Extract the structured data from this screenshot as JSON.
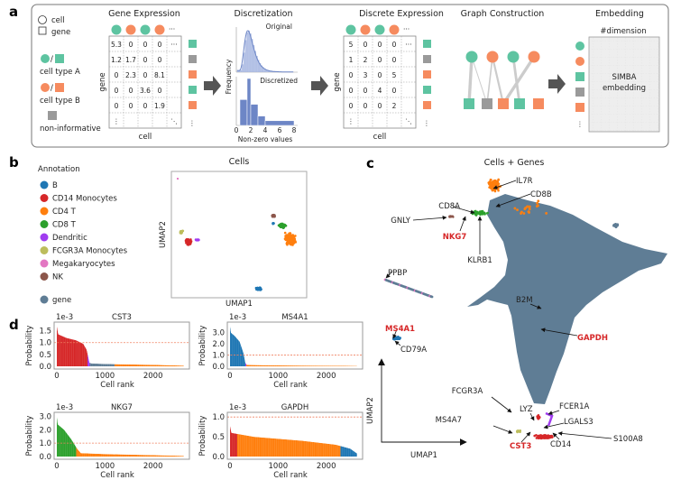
{
  "panel_labels": {
    "a": "a",
    "b": "b",
    "c": "c",
    "d": "d"
  },
  "colors": {
    "type_a": "#5ec4a1",
    "type_b": "#f68b5f",
    "non_informative": "#9a9a9a",
    "B": "#1f77b4",
    "CD14 Monocytes": "#d62728",
    "CD4 T": "#ff7f0e",
    "CD8 T": "#2ca02c",
    "Dendritic": "#a03cf0",
    "FCGR3A Monocytes": "#bcbd5c",
    "Megakaryocytes": "#e377c2",
    "NK": "#8c564b",
    "gene": "#5f7d95",
    "threshold": "#f08060",
    "hist": "#6d86c6"
  },
  "overview": {
    "legend": {
      "cell": "cell",
      "gene": "gene",
      "slash": "/",
      "type_a": "cell type A",
      "type_b": "cell type B",
      "non_informative": "non-informative"
    },
    "gene_expression": {
      "title": "Gene Expression",
      "row_label": "gene",
      "col_label": "cell",
      "cell_types": [
        "A",
        "B",
        "A",
        "B"
      ],
      "more_cells": "···",
      "gene_types": [
        "A",
        "N",
        "B",
        "A",
        "B"
      ],
      "more_genes": "⋮",
      "matrix": [
        [
          "5.3",
          "0",
          "0",
          "0",
          "···"
        ],
        [
          "1.2",
          "1.7",
          "0",
          "0",
          ""
        ],
        [
          "0",
          "2.3",
          "0",
          "8.1",
          ""
        ],
        [
          "0",
          "0",
          "3.6",
          "0",
          ""
        ],
        [
          "0",
          "0",
          "0",
          "1.9",
          ""
        ],
        [
          "⋮",
          "",
          "",
          "",
          "⋱"
        ]
      ]
    },
    "discretization": {
      "title": "Discretization",
      "original_label": "Original",
      "discretized_label": "Discretized",
      "ylabel": "Frequency",
      "xlabel": "Non-zero values",
      "xticks": [
        "0",
        "2",
        "4",
        "6",
        "8"
      ],
      "discretized_bins": [
        {
          "from": 0.5,
          "to": 1.5,
          "height": 0.55
        },
        {
          "from": 1.5,
          "to": 2,
          "height": 1.0
        },
        {
          "from": 2,
          "to": 3,
          "height": 0.45
        },
        {
          "from": 3,
          "to": 4,
          "height": 0.2
        },
        {
          "from": 4,
          "to": 8,
          "height": 0.1
        }
      ]
    },
    "discrete_expression": {
      "title": "Discrete Expression",
      "row_label": "gene",
      "col_label": "cell",
      "matrix": [
        [
          "5",
          "0",
          "0",
          "0",
          "···"
        ],
        [
          "1",
          "2",
          "0",
          "0",
          ""
        ],
        [
          "0",
          "3",
          "0",
          "5",
          ""
        ],
        [
          "0",
          "0",
          "4",
          "0",
          ""
        ],
        [
          "0",
          "0",
          "0",
          "2",
          ""
        ],
        [
          "⋮",
          "",
          "",
          "",
          "⋱"
        ]
      ]
    },
    "graph": {
      "title": "Graph Construction",
      "edges": [
        {
          "cell": 0,
          "gene": 0,
          "w": 5
        },
        {
          "cell": 0,
          "gene": 1,
          "w": 1
        },
        {
          "cell": 1,
          "gene": 1,
          "w": 2
        },
        {
          "cell": 1,
          "gene": 2,
          "w": 3
        },
        {
          "cell": 2,
          "gene": 3,
          "w": 4
        },
        {
          "cell": 3,
          "gene": 2,
          "w": 5
        }
      ]
    },
    "embedding": {
      "title": "Embedding",
      "dim_label": "#dimension",
      "box_line1": "SIMBA",
      "box_line2": "embedding",
      "rows": [
        "cellA",
        "cellB",
        "geneA",
        "geneN",
        "geneB"
      ],
      "more": "⋮"
    }
  },
  "cells_plot": {
    "title": "Cells",
    "xlabel": "UMAP1",
    "ylabel": "UMAP2",
    "legend_title": "Annotation",
    "legend": [
      "B",
      "CD14 Monocytes",
      "CD4 T",
      "CD8 T",
      "Dendritic",
      "FCGR3A Monocytes",
      "Megakaryocytes",
      "NK"
    ],
    "gene_entry": "gene"
  },
  "cells_genes_plot": {
    "title": "Cells + Genes",
    "xlabel": "UMAP1",
    "ylabel": "UMAP2",
    "gene_labels": [
      {
        "text": "IL7R",
        "highlight": false
      },
      {
        "text": "CD8B",
        "highlight": false
      },
      {
        "text": "CD8A",
        "highlight": false
      },
      {
        "text": "GNLY",
        "highlight": false
      },
      {
        "text": "NKG7",
        "highlight": true
      },
      {
        "text": "KLRB1",
        "highlight": false
      },
      {
        "text": "PPBP",
        "highlight": false
      },
      {
        "text": "B2M",
        "highlight": false
      },
      {
        "text": "GAPDH",
        "highlight": true
      },
      {
        "text": "MS4A1",
        "highlight": true
      },
      {
        "text": "CD79A",
        "highlight": false
      },
      {
        "text": "FCGR3A",
        "highlight": false
      },
      {
        "text": "LYZ",
        "highlight": false
      },
      {
        "text": "FCER1A",
        "highlight": false
      },
      {
        "text": "MS4A7",
        "highlight": false
      },
      {
        "text": "LGALS3",
        "highlight": false
      },
      {
        "text": "S100A8",
        "highlight": false
      },
      {
        "text": "CST3",
        "highlight": true
      },
      {
        "text": "CD14",
        "highlight": false
      }
    ]
  },
  "chart_data": [
    {
      "type": "area",
      "title": "CST3",
      "scale_label": "1e-3",
      "xlabel": "Cell rank",
      "ylabel": "Probability",
      "xticks": [
        "0",
        "1000",
        "2000"
      ],
      "yticks": [
        "0.0",
        "0.5",
        "1.0",
        "1.5"
      ],
      "ylim": [
        0,
        1.75
      ],
      "threshold": 1.0,
      "x": [
        0,
        30,
        200,
        400,
        550,
        620,
        680,
        720,
        1000,
        2000,
        2638
      ],
      "y": [
        1.7,
        1.35,
        1.2,
        1.1,
        0.95,
        0.7,
        0.15,
        0.12,
        0.1,
        0.06,
        0.03
      ],
      "color_segments": [
        {
          "to": 640,
          "color": "CD14 Monocytes"
        },
        {
          "to": 680,
          "color": "Dendritic"
        },
        {
          "to": 1200,
          "color": "gene"
        },
        {
          "to": 2638,
          "color": "CD4 T"
        }
      ]
    },
    {
      "type": "area",
      "title": "MS4A1",
      "scale_label": "1e-3",
      "xlabel": "Cell rank",
      "ylabel": "Probability",
      "xticks": [
        "0",
        "1000",
        "2000"
      ],
      "yticks": [
        "0.0",
        "1.0",
        "2.0",
        "3.0"
      ],
      "ylim": [
        0,
        3.7
      ],
      "threshold": 1.0,
      "x": [
        0,
        20,
        100,
        200,
        280,
        320,
        350,
        1000,
        2638
      ],
      "y": [
        3.6,
        3.0,
        2.7,
        2.2,
        1.2,
        0.3,
        0.12,
        0.08,
        0.03
      ],
      "color_segments": [
        {
          "to": 320,
          "color": "B"
        },
        {
          "to": 340,
          "color": "Dendritic"
        },
        {
          "to": 2638,
          "color": "CD4 T"
        }
      ]
    },
    {
      "type": "area",
      "title": "NKG7",
      "scale_label": "1e-3",
      "xlabel": "Cell rank",
      "ylabel": "Probability",
      "xticks": [
        "0",
        "1000",
        "2000"
      ],
      "yticks": [
        "0.0",
        "1.0",
        "2.0",
        "3.0"
      ],
      "ylim": [
        0,
        3.1
      ],
      "threshold": 1.0,
      "x": [
        0,
        20,
        150,
        300,
        420,
        500,
        1000,
        2638
      ],
      "y": [
        3.0,
        2.4,
        2.0,
        1.3,
        0.6,
        0.25,
        0.18,
        0.05
      ],
      "color_segments": [
        {
          "to": 400,
          "color": "CD8 T"
        },
        {
          "to": 2638,
          "color": "CD4 T"
        }
      ]
    },
    {
      "type": "area",
      "title": "GAPDH",
      "scale_label": "1e-3",
      "xlabel": "Cell rank",
      "ylabel": "Probability",
      "xticks": [
        "0",
        "1000",
        "2000"
      ],
      "yticks": [
        "0.0",
        "0.5",
        "1.0"
      ],
      "ylim": [
        0,
        1.05
      ],
      "threshold": 1.0,
      "x": [
        0,
        30,
        500,
        1500,
        2200,
        2500,
        2638
      ],
      "y": [
        0.78,
        0.6,
        0.5,
        0.4,
        0.3,
        0.2,
        0.08
      ],
      "color_segments": [
        {
          "to": 150,
          "color": "CD14 Monocytes"
        },
        {
          "to": 2300,
          "color": "CD4 T"
        },
        {
          "to": 2638,
          "color": "B"
        }
      ]
    }
  ]
}
